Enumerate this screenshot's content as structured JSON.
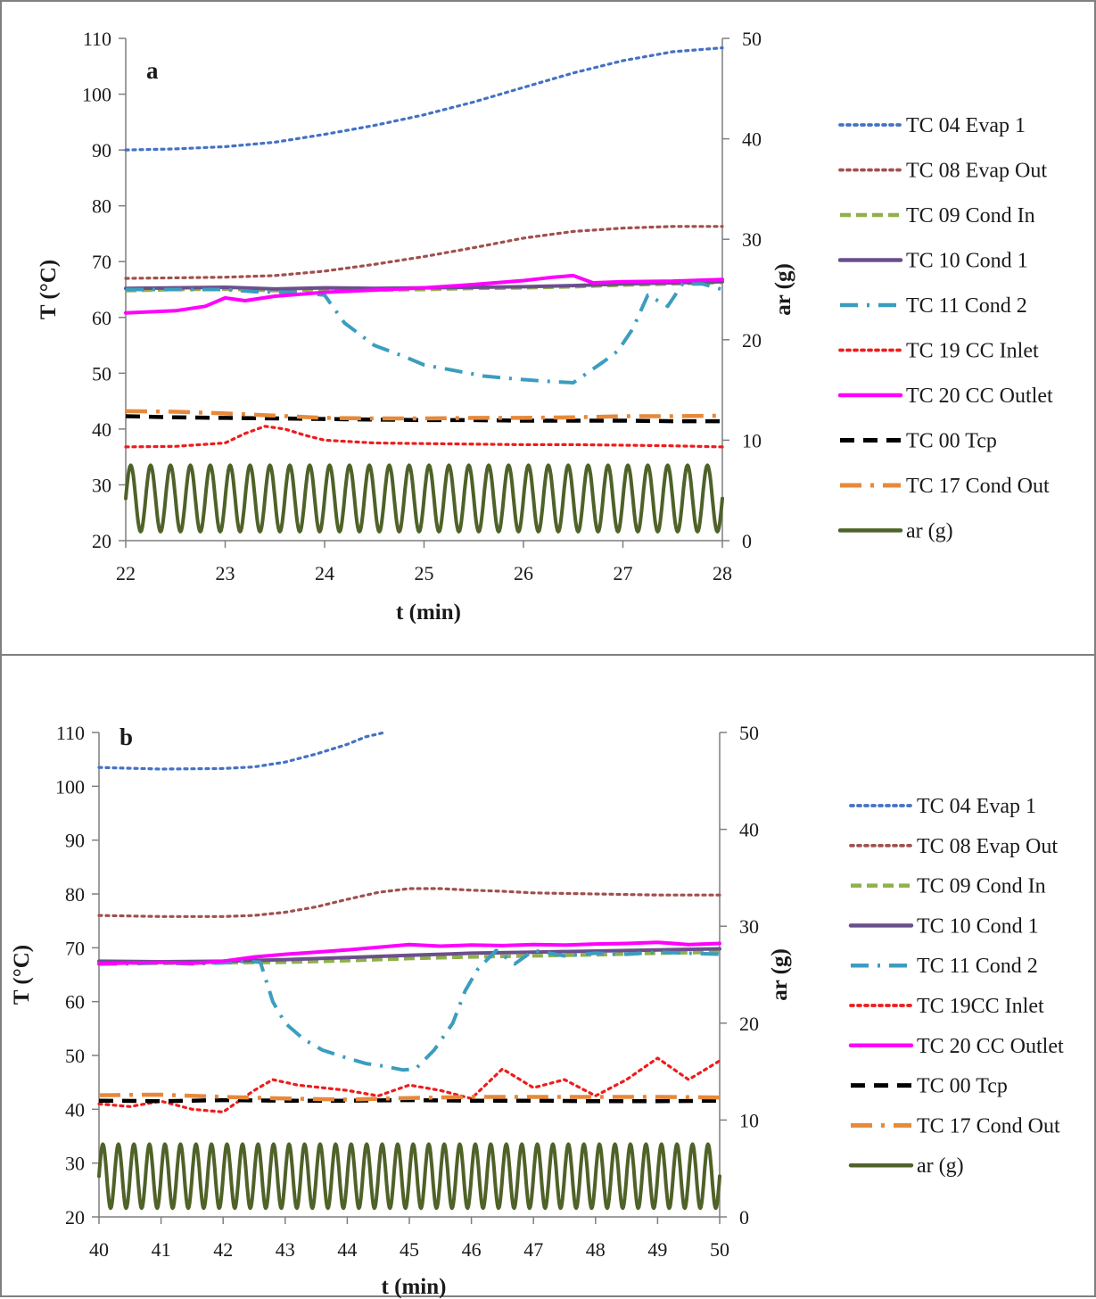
{
  "chart_data": [
    {
      "type": "line",
      "panel_label": "a",
      "xlabel": "t (min)",
      "ylabel": "T (°C)",
      "y2label": "ar (g)",
      "xlim": [
        22,
        28
      ],
      "ylim": [
        20,
        110
      ],
      "y2lim": [
        0,
        50
      ],
      "x_ticks": [
        "22",
        "23",
        "24",
        "25",
        "26",
        "27",
        "28"
      ],
      "y_ticks": [
        "20",
        "30",
        "40",
        "50",
        "60",
        "70",
        "80",
        "90",
        "100",
        "110"
      ],
      "y2_ticks": [
        "0",
        "10",
        "20",
        "30",
        "40",
        "50"
      ],
      "legend_position": "right",
      "series": [
        {
          "name": "TC 04 Evap 1",
          "color": "#4472c4",
          "style": "dot",
          "x": [
            22,
            22.5,
            23,
            23.5,
            24,
            24.5,
            25,
            25.5,
            26,
            26.5,
            27,
            27.5,
            28
          ],
          "y": [
            90,
            90.2,
            90.6,
            91.4,
            92.8,
            94.4,
            96.3,
            98.6,
            101.2,
            103.8,
            106,
            107.6,
            108.3
          ]
        },
        {
          "name": "TC 08 Evap Out",
          "color": "#a0504e",
          "style": "dot",
          "x": [
            22,
            22.5,
            23,
            23.5,
            24,
            24.5,
            25,
            25.5,
            26,
            26.5,
            27,
            27.5,
            28
          ],
          "y": [
            67,
            67.1,
            67.2,
            67.5,
            68.3,
            69.5,
            70.9,
            72.5,
            74.2,
            75.4,
            76,
            76.3,
            76.3
          ]
        },
        {
          "name": "TC 09 Cond In",
          "color": "#8fb04a",
          "style": "dash",
          "x": [
            22,
            22.5,
            23,
            23.5,
            24,
            24.5,
            25,
            25.5,
            26,
            26.5,
            27,
            27.5,
            28
          ],
          "y": [
            64.8,
            65,
            65.1,
            64.8,
            65,
            64.9,
            65,
            65.2,
            65.3,
            65.5,
            65.8,
            66,
            66.3
          ]
        },
        {
          "name": "TC 10 Cond 1",
          "color": "#6a4f8c",
          "style": "solid",
          "x": [
            22,
            22.5,
            23,
            23.5,
            24,
            24.5,
            25,
            25.5,
            26,
            26.5,
            27,
            27.5,
            28
          ],
          "y": [
            65.2,
            65.3,
            65.4,
            65.1,
            65.3,
            65.2,
            65.3,
            65.4,
            65.5,
            65.7,
            66,
            66.2,
            66.4
          ]
        },
        {
          "name": "TC 11 Cond 2",
          "color": "#3b9dbf",
          "style": "dashdot",
          "x": [
            22,
            22.5,
            23,
            23.3,
            23.7,
            24,
            24.2,
            24.5,
            24.8,
            25,
            25.3,
            25.6,
            25.9,
            26.2,
            26.5,
            26.8,
            26.95,
            27.1,
            27.25,
            27.45,
            27.6,
            27.8,
            28
          ],
          "y": [
            65,
            65,
            65,
            64.6,
            64.5,
            64,
            59,
            55,
            53,
            51.5,
            50.5,
            49.5,
            49,
            48.6,
            48.3,
            52,
            54,
            58,
            64,
            62,
            66,
            66,
            65
          ]
        },
        {
          "name": "TC 19 CC Inlet",
          "color": "#ee1c1c",
          "style": "dot",
          "x": [
            22,
            22.5,
            23,
            23.2,
            23.4,
            23.6,
            23.8,
            24,
            24.5,
            25,
            25.5,
            26,
            26.5,
            27,
            27.5,
            28
          ],
          "y": [
            36.8,
            36.9,
            37.5,
            39.2,
            40.5,
            40,
            38.9,
            38,
            37.5,
            37.4,
            37.3,
            37.2,
            37.2,
            37.1,
            37,
            36.8
          ]
        },
        {
          "name": "TC 20 CC Outlet",
          "color": "#ff00ff",
          "style": "solid",
          "x": [
            22,
            22.5,
            22.8,
            23,
            23.2,
            23.5,
            24,
            24.5,
            25,
            25.5,
            26,
            26.3,
            26.5,
            26.7,
            27,
            27.5,
            28
          ],
          "y": [
            60.8,
            61.2,
            62,
            63.5,
            63,
            63.8,
            64.5,
            64.9,
            65.3,
            65.9,
            66.6,
            67.2,
            67.5,
            66.2,
            66.4,
            66.5,
            66.8
          ]
        },
        {
          "name": "TC 00 Tcp",
          "color": "#000000",
          "style": "longdash",
          "x": [
            22,
            22.5,
            23,
            23.5,
            24,
            24.5,
            25,
            25.5,
            26,
            26.5,
            27,
            27.5,
            28
          ],
          "y": [
            42.3,
            42.1,
            42,
            41.9,
            41.8,
            41.7,
            41.6,
            41.6,
            41.5,
            41.5,
            41.5,
            41.4,
            41.4
          ]
        },
        {
          "name": "TC 17 Cond Out",
          "color": "#e6893a",
          "style": "longdashdot",
          "x": [
            22,
            22.5,
            23,
            23.5,
            24,
            24.5,
            25,
            25.5,
            26,
            26.5,
            27,
            27.5,
            28
          ],
          "y": [
            43.2,
            43.1,
            42.8,
            42.4,
            42,
            41.9,
            41.9,
            42,
            42,
            42.1,
            42.3,
            42.3,
            42.4
          ]
        },
        {
          "name": "ar (g)",
          "color": "#4f6228",
          "style": "solid",
          "axis": "right",
          "oscillation": {
            "baseline": 4.2,
            "amplitude": 3.3,
            "cycles": 30
          }
        }
      ]
    },
    {
      "type": "line",
      "panel_label": "b",
      "xlabel": "t (min)",
      "ylabel": "T (°C)",
      "y2label": "ar (g)",
      "xlim": [
        40,
        50
      ],
      "ylim": [
        20,
        110
      ],
      "y2lim": [
        0,
        50
      ],
      "x_ticks": [
        "40",
        "41",
        "42",
        "43",
        "44",
        "45",
        "46",
        "47",
        "48",
        "49",
        "50"
      ],
      "y_ticks": [
        "20",
        "30",
        "40",
        "50",
        "60",
        "70",
        "80",
        "90",
        "100",
        "110"
      ],
      "y2_ticks": [
        "0",
        "10",
        "20",
        "30",
        "40",
        "50"
      ],
      "legend_position": "right",
      "series": [
        {
          "name": "TC 04 Evap 1",
          "color": "#4472c4",
          "style": "dot",
          "x": [
            40,
            41,
            42,
            42.5,
            43,
            43.5,
            44,
            44.3,
            44.6
          ],
          "y": [
            103.5,
            103.2,
            103.3,
            103.6,
            104.5,
            106,
            107.8,
            109.2,
            110
          ]
        },
        {
          "name": "TC 08 Evap Out",
          "color": "#a0504e",
          "style": "dot",
          "x": [
            40,
            41,
            42,
            42.5,
            43,
            43.5,
            44,
            44.5,
            45,
            45.5,
            46,
            46.5,
            47,
            48,
            49,
            50
          ],
          "y": [
            76,
            75.8,
            75.8,
            76,
            76.6,
            77.6,
            79,
            80.3,
            81,
            81,
            80.7,
            80.5,
            80.2,
            80,
            79.8,
            79.8
          ]
        },
        {
          "name": "TC 09 Cond In",
          "color": "#8fb04a",
          "style": "dash",
          "x": [
            40,
            41,
            42,
            43,
            44,
            45,
            46,
            47,
            48,
            49,
            50
          ],
          "y": [
            67.2,
            67.1,
            67.2,
            67.3,
            67.6,
            68,
            68.3,
            68.5,
            68.7,
            69,
            69.2
          ]
        },
        {
          "name": "TC 10 Cond 1",
          "color": "#6a4f8c",
          "style": "solid",
          "x": [
            40,
            41,
            42,
            43,
            44,
            45,
            46,
            47,
            48,
            49,
            50
          ],
          "y": [
            67.5,
            67.4,
            67.5,
            67.8,
            68.2,
            68.6,
            69,
            69.2,
            69.4,
            69.6,
            69.8
          ]
        },
        {
          "name": "TC 11 Cond 2",
          "color": "#3b9dbf",
          "style": "dashdot",
          "x": [
            40,
            40.5,
            41,
            41.5,
            42,
            42.4,
            42.6,
            42.8,
            43,
            43.3,
            43.6,
            44,
            44.3,
            44.6,
            44.9,
            45.1,
            45.4,
            45.7,
            45.9,
            46.1,
            46.4,
            46.7,
            47,
            47.5,
            48,
            48.5,
            49,
            49.5,
            50
          ],
          "y": [
            67,
            67,
            67.2,
            67,
            67.2,
            67.5,
            67.3,
            60,
            56,
            53,
            51,
            49.5,
            48.5,
            48,
            47.3,
            47.5,
            51,
            56,
            62,
            66,
            69.5,
            67,
            69.5,
            68.5,
            69,
            68.8,
            69.2,
            69,
            68.8
          ]
        },
        {
          "name": "TC 19CC Inlet",
          "color": "#ee1c1c",
          "style": "dot",
          "x": [
            40,
            40.5,
            41,
            41.5,
            42,
            42.5,
            42.8,
            43.2,
            43.6,
            44,
            44.5,
            45,
            45.5,
            46,
            46.5,
            47,
            47.5,
            48,
            48.5,
            49,
            49.5,
            50
          ],
          "y": [
            41,
            40.5,
            41.5,
            40,
            39.5,
            43.5,
            45.5,
            44.5,
            44,
            43.5,
            42.5,
            44.5,
            43.5,
            42,
            47.5,
            44,
            45.5,
            42.5,
            45.5,
            49.5,
            45.5,
            49
          ]
        },
        {
          "name": "TC 20 CC Outlet",
          "color": "#ff00ff",
          "style": "solid",
          "x": [
            40,
            40.5,
            41,
            41.5,
            42,
            42.5,
            43,
            43.5,
            44,
            44.5,
            45,
            45.5,
            46,
            46.5,
            47,
            47.5,
            48,
            48.5,
            49,
            49.5,
            50
          ],
          "y": [
            67,
            67.2,
            67.3,
            67.1,
            67.5,
            68.3,
            68.8,
            69.2,
            69.6,
            70.1,
            70.6,
            70.3,
            70.5,
            70.4,
            70.6,
            70.5,
            70.7,
            70.8,
            71,
            70.6,
            70.8
          ]
        },
        {
          "name": "TC 00 Tcp",
          "color": "#000000",
          "style": "longdash",
          "x": [
            40,
            41,
            42,
            43,
            44,
            45,
            46,
            47,
            48,
            49,
            50
          ],
          "y": [
            41.6,
            41.5,
            41.7,
            41.6,
            41.6,
            41.7,
            41.6,
            41.6,
            41.5,
            41.5,
            41.6
          ]
        },
        {
          "name": "TC 17 Cond Out",
          "color": "#e6893a",
          "style": "longdashdot",
          "x": [
            40,
            41,
            42,
            43,
            44,
            45,
            46,
            47,
            48,
            49,
            50
          ],
          "y": [
            42.6,
            42.7,
            42.3,
            42,
            41.8,
            42.1,
            42.3,
            42.3,
            42.3,
            42.3,
            42.2
          ]
        },
        {
          "name": "ar (g)",
          "color": "#4f6228",
          "style": "solid",
          "axis": "right",
          "oscillation": {
            "baseline": 4.2,
            "amplitude": 3.3,
            "cycles": 40
          }
        }
      ]
    }
  ]
}
